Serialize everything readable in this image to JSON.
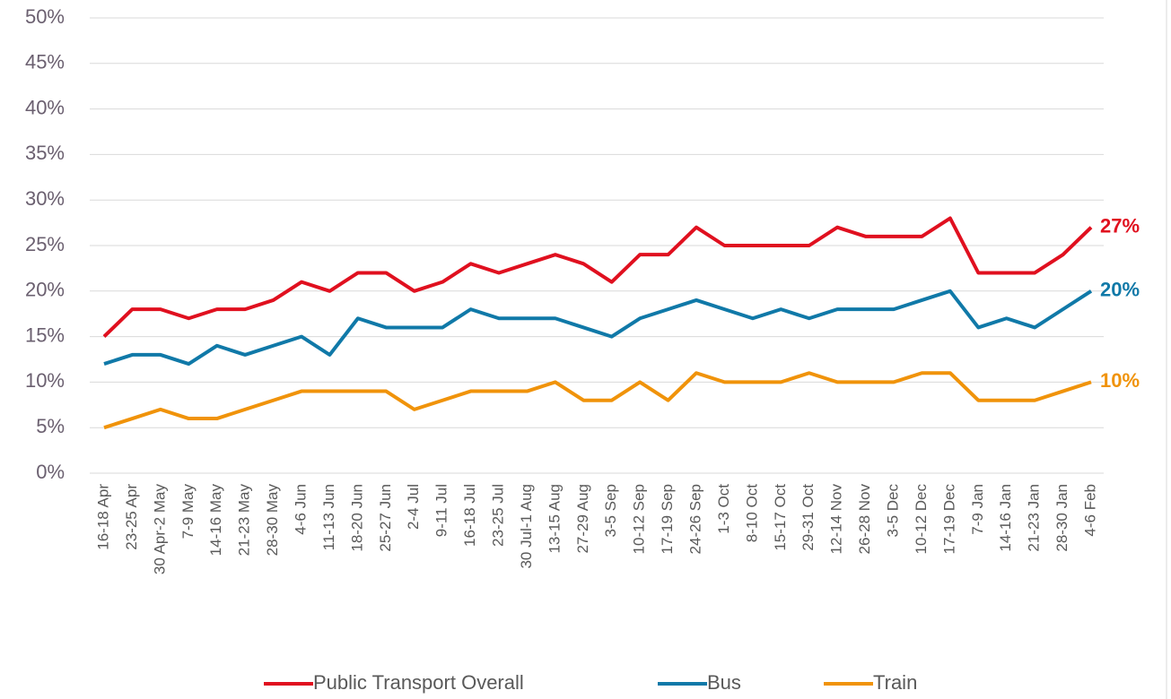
{
  "chart_data": {
    "type": "line",
    "categories": [
      "16-18 Apr",
      "23-25 Apr",
      "30 Apr-2 May",
      "7-9 May",
      "14-16 May",
      "21-23 May",
      "28-30 May",
      "4-6 Jun",
      "11-13 Jun",
      "18-20 Jun",
      "25-27 Jun",
      "2-4 Jul",
      "9-11 Jul",
      "16-18 Jul",
      "23-25 Jul",
      "30 Jul-1 Aug",
      "13-15 Aug",
      "27-29 Aug",
      "3-5 Sep",
      "10-12 Sep",
      "17-19 Sep",
      "24-26 Sep",
      "1-3 Oct",
      "8-10 Oct",
      "15-17 Oct",
      "29-31 Oct",
      "12-14 Nov",
      "26-28 Nov",
      "3-5 Dec",
      "10-12 Dec",
      "17-19 Dec",
      "7-9 Jan",
      "14-16 Jan",
      "21-23 Jan",
      "28-30 Jan",
      "4-6 Feb"
    ],
    "series": [
      {
        "name": "Public Transport Overall",
        "color": "#e0101f",
        "values": [
          15,
          18,
          18,
          17,
          18,
          18,
          19,
          21,
          20,
          22,
          22,
          20,
          21,
          23,
          22,
          23,
          24,
          23,
          21,
          24,
          24,
          27,
          25,
          25,
          25,
          25,
          27,
          26,
          26,
          26,
          28,
          22,
          22,
          22,
          24,
          27
        ],
        "value_labels": [
          null,
          null,
          null,
          null,
          null,
          null,
          null,
          null,
          null,
          null,
          null,
          null,
          null,
          null,
          null,
          null,
          null,
          null,
          null,
          null,
          null,
          null,
          null,
          null,
          null,
          null,
          null,
          null,
          null,
          null,
          null,
          null,
          null,
          null,
          null,
          "27%"
        ]
      },
      {
        "name": "Bus",
        "color": "#1079a8",
        "values": [
          12,
          13,
          13,
          12,
          14,
          13,
          14,
          15,
          13,
          17,
          16,
          16,
          16,
          18,
          17,
          17,
          17,
          16,
          15,
          17,
          18,
          19,
          18,
          17,
          18,
          17,
          18,
          18,
          18,
          19,
          20,
          16,
          17,
          16,
          18,
          20
        ],
        "value_labels": [
          null,
          null,
          null,
          null,
          null,
          null,
          null,
          null,
          null,
          null,
          null,
          null,
          null,
          null,
          null,
          null,
          null,
          null,
          null,
          null,
          null,
          null,
          null,
          null,
          null,
          null,
          null,
          null,
          null,
          null,
          null,
          null,
          null,
          null,
          null,
          "20%"
        ]
      },
      {
        "name": "Train",
        "color": "#f0930a",
        "values": [
          5,
          6,
          7,
          6,
          6,
          7,
          8,
          9,
          9,
          9,
          9,
          7,
          8,
          9,
          9,
          9,
          10,
          8,
          8,
          10,
          8,
          11,
          10,
          10,
          10,
          11,
          10,
          10,
          10,
          11,
          11,
          8,
          8,
          8,
          9,
          10
        ],
        "value_labels": [
          null,
          null,
          null,
          null,
          null,
          null,
          null,
          null,
          null,
          null,
          null,
          null,
          null,
          null,
          null,
          null,
          null,
          null,
          null,
          null,
          null,
          null,
          null,
          null,
          null,
          null,
          null,
          null,
          null,
          null,
          null,
          null,
          null,
          null,
          null,
          "10%"
        ]
      }
    ],
    "ylim": [
      0,
      50
    ],
    "yticks": [
      {
        "value": 0,
        "label": "0%"
      },
      {
        "value": 5,
        "label": "5%"
      },
      {
        "value": 10,
        "label": "10%"
      },
      {
        "value": 15,
        "label": "15%"
      },
      {
        "value": 20,
        "label": "20%"
      },
      {
        "value": 25,
        "label": "25%"
      },
      {
        "value": 30,
        "label": "30%"
      },
      {
        "value": 35,
        "label": "35%"
      },
      {
        "value": 40,
        "label": "40%"
      },
      {
        "value": 45,
        "label": "45%"
      },
      {
        "value": 50,
        "label": "50%"
      }
    ],
    "grid": true,
    "legend": "bottom"
  }
}
